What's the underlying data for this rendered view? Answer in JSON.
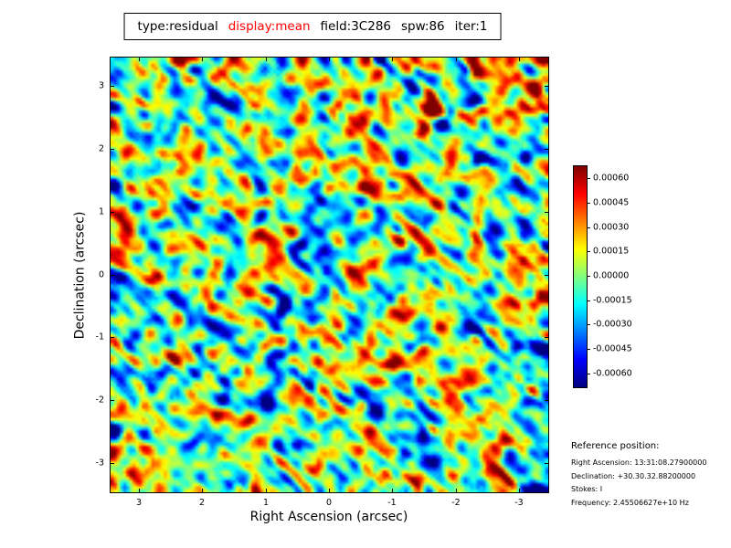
{
  "title": {
    "tokens": [
      {
        "text": "type:residual",
        "color": "#000000"
      },
      {
        "text": "display:mean",
        "color": "#ff0000"
      },
      {
        "text": "field:3C286",
        "color": "#000000"
      },
      {
        "text": "spw:86",
        "color": "#000000"
      },
      {
        "text": "iter:1",
        "color": "#000000"
      }
    ]
  },
  "axes": {
    "xlabel": "Right Ascension (arcsec)",
    "ylabel": "Declination (arcsec)",
    "xtick_labels": [
      "3",
      "2",
      "1",
      "0",
      "-1",
      "-2",
      "-3"
    ],
    "ytick_labels": [
      "3",
      "2",
      "1",
      "0",
      "-1",
      "-2",
      "-3"
    ]
  },
  "colorbar": {
    "tick_labels": [
      "0.00060",
      "0.00045",
      "0.00030",
      "0.00015",
      "0.00000",
      "-0.00015",
      "-0.00030",
      "-0.00045",
      "-0.00060"
    ],
    "colormap": "jet"
  },
  "reference": {
    "heading": "Reference position:",
    "lines": [
      "Right Ascension: 13:31:08.27900000",
      "Declination: +30.30.32.88200000",
      "Stokes: I",
      "Frequency: 2.45506627e+10 Hz"
    ]
  },
  "chart_data": {
    "type": "heatmap",
    "title": "type:residual display:mean field:3C286 spw:86 iter:1",
    "xlabel": "Right Ascension (arcsec)",
    "ylabel": "Declination (arcsec)",
    "xticks": [
      3,
      2,
      1,
      0,
      -1,
      -2,
      -3
    ],
    "yticks": [
      3,
      2,
      1,
      0,
      -1,
      -2,
      -3
    ],
    "x_range": [
      3.45,
      -3.45
    ],
    "y_range": [
      -3.45,
      3.45
    ],
    "value_range": [
      -0.00068,
      0.00068
    ],
    "colorbar_ticks": [
      0.0006,
      0.00045,
      0.0003,
      0.00015,
      0,
      -0.00015,
      -0.0003,
      -0.00045,
      -0.0006
    ],
    "colormap": "jet",
    "content": "Spatially correlated residual noise map (no coherent source); mostly green/cyan mid-values with scattered red/orange and dark blue extrema and faint diagonal striping",
    "noise": {
      "grid_size": 140,
      "seed": 1234567,
      "blob_blur_passes": 3,
      "broad_blur_passes": 6,
      "streak_length": 6,
      "blob_weight": 1.0,
      "streak_weight": 0.95,
      "broad_weight": 0.8,
      "sigma_clip": 2.4
    }
  }
}
